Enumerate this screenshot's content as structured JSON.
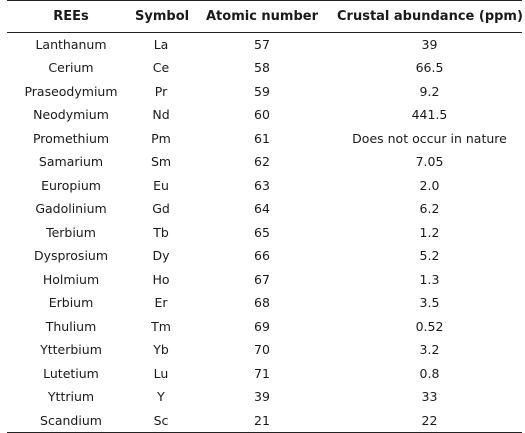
{
  "table": {
    "headers": [
      "REEs",
      "Symbol",
      "Atomic number",
      "Crustal abundance (ppm)"
    ],
    "rows": [
      [
        "Lanthanum",
        "La",
        "57",
        "39"
      ],
      [
        "Cerium",
        "Ce",
        "58",
        "66.5"
      ],
      [
        "Praseodymium",
        "Pr",
        "59",
        "9.2"
      ],
      [
        "Neodymium",
        "Nd",
        "60",
        "441.5"
      ],
      [
        "Promethium",
        "Pm",
        "61",
        "Does not occur in nature"
      ],
      [
        "Samarium",
        "Sm",
        "62",
        "7.05"
      ],
      [
        "Europium",
        "Eu",
        "63",
        "2.0"
      ],
      [
        "Gadolinium",
        "Gd",
        "64",
        "6.2"
      ],
      [
        "Terbium",
        "Tb",
        "65",
        "1.2"
      ],
      [
        "Dysprosium",
        "Dy",
        "66",
        "5.2"
      ],
      [
        "Holmium",
        "Ho",
        "67",
        "1.3"
      ],
      [
        "Erbium",
        "Er",
        "68",
        "3.5"
      ],
      [
        "Thulium",
        "Tm",
        "69",
        "0.52"
      ],
      [
        "Ytterbium",
        "Yb",
        "70",
        "3.2"
      ],
      [
        "Lutetium",
        "Lu",
        "71",
        "0.8"
      ],
      [
        "Yttrium",
        "Y",
        "39",
        "33"
      ],
      [
        "Scandium",
        "Sc",
        "21",
        "22"
      ]
    ]
  }
}
